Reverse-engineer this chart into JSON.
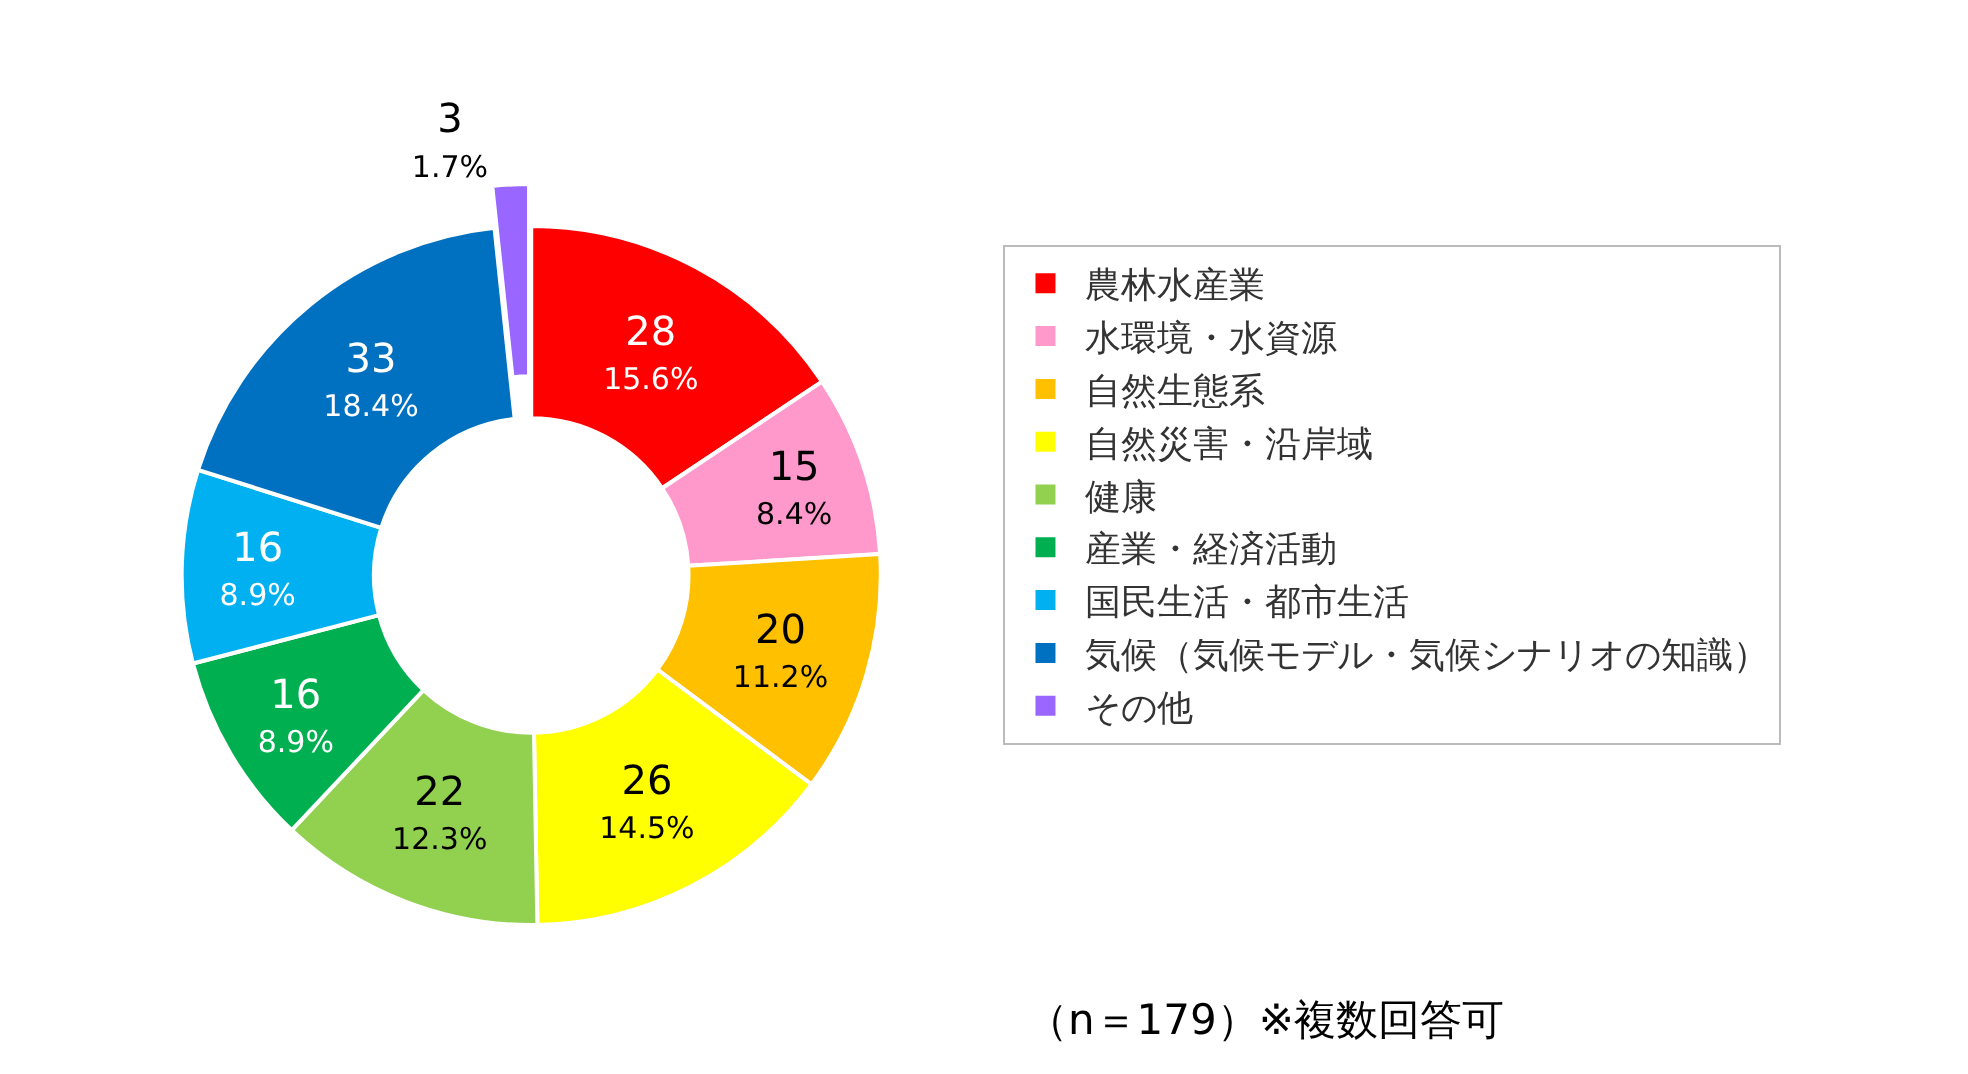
{
  "chart_data": {
    "type": "donut",
    "categories": [
      "農林水産業",
      "水環境・水資源",
      "自然生態系",
      "自然災害・沿岸域",
      "健康",
      "産業・経済活動",
      "国民生活・都市生活",
      "気候（気候モデル・気候シナリオの知識）",
      "その他"
    ],
    "values": [
      28,
      15,
      20,
      26,
      22,
      16,
      16,
      33,
      3
    ],
    "colors": [
      "#ff0000",
      "#ff99cc",
      "#ffc000",
      "#ffff00",
      "#92d050",
      "#00b050",
      "#00b0f0",
      "#0070c0",
      "#9966ff"
    ],
    "value_labels": [
      "28\n15.6%",
      "15\n8.4%",
      "20\n11.2%",
      "26\n14.5%",
      "22\n12.3%",
      "16\n8.9%",
      "16\n8.9%",
      "33\n18.4%",
      "3\n1.7%"
    ],
    "legend": "right",
    "annotations": [
      "（n＝179）※複数回答可"
    ]
  }
}
